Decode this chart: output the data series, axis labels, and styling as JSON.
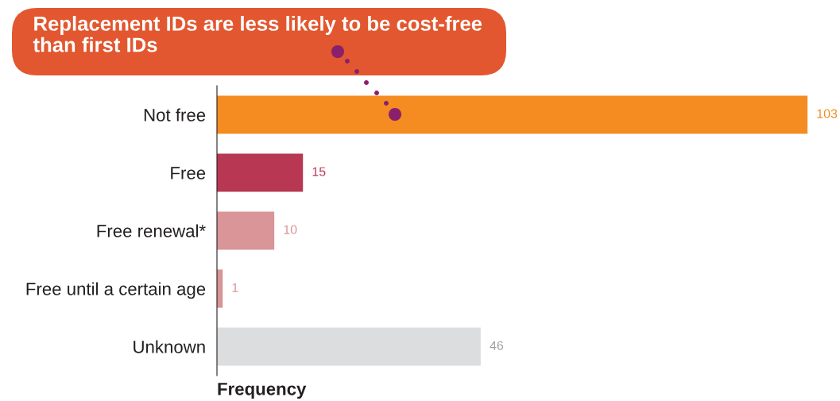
{
  "chart_data": {
    "type": "bar",
    "orientation": "horizontal",
    "title": "Replacement IDs are less likely to be cost-free than first IDs",
    "xlabel": "Frequency",
    "categories": [
      "Not free",
      "Free",
      "Free renewal*",
      "Free until a certain age",
      "Unknown"
    ],
    "values": [
      103,
      15,
      10,
      1,
      46
    ],
    "colors": [
      "#f48c22",
      "#b83752",
      "#d99597",
      "#d99597",
      "#dcdddf"
    ],
    "data_labels": true,
    "grid": false,
    "legend": false
  }
}
